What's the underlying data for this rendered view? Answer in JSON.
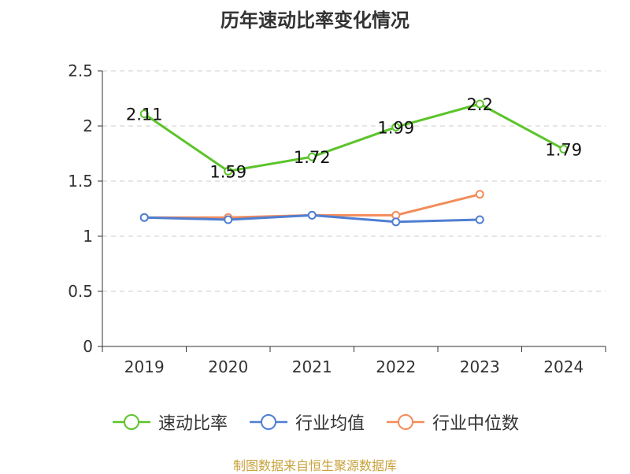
{
  "chart_data": {
    "type": "line",
    "title": "历年速动比率变化情况",
    "categories": [
      "2019",
      "2020",
      "2021",
      "2022",
      "2023",
      "2024"
    ],
    "ylim": [
      0,
      2.5
    ],
    "yticks": [
      "0",
      "0.5",
      "1",
      "1.5",
      "2",
      "2.5"
    ],
    "grid": true,
    "legend_position": "bottom",
    "series": [
      {
        "name": "速动比率",
        "color": "#5cc42b",
        "values": [
          2.11,
          1.59,
          1.72,
          1.99,
          2.2,
          1.79
        ],
        "labels": [
          "2.11",
          "1.59",
          "1.72",
          "1.99",
          "2.2",
          "1.79"
        ]
      },
      {
        "name": "行业均值",
        "color": "#4f7fd3",
        "values": [
          1.17,
          1.15,
          1.19,
          1.13,
          1.15,
          null
        ]
      },
      {
        "name": "行业中位数",
        "color": "#f28c5a",
        "values": [
          1.17,
          1.17,
          1.19,
          1.19,
          1.38,
          null
        ]
      }
    ]
  },
  "source": "制图数据来自恒生聚源数据库"
}
